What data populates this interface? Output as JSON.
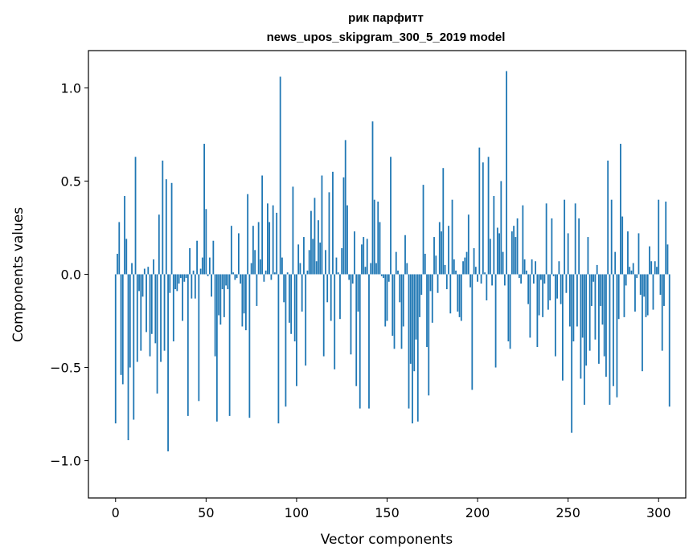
{
  "chart_data": {
    "type": "bar",
    "title_line1": "рик парфитт",
    "title_line2": "news_upos_skipgram_300_5_2019 model",
    "xlabel": "Vector components",
    "ylabel": "Components values",
    "xlim": [
      -15,
      315
    ],
    "ylim": [
      -1.2,
      1.2
    ],
    "xticks": [
      0,
      50,
      100,
      150,
      200,
      250,
      300
    ],
    "xtick_labels": [
      "0",
      "50",
      "100",
      "150",
      "200",
      "250",
      "300"
    ],
    "yticks": [
      -1.0,
      -0.5,
      0.0,
      0.5,
      1.0
    ],
    "ytick_labels": [
      "−1.0",
      "−0.5",
      "0.0",
      "0.5",
      "1.0"
    ],
    "bar_color": "#1f77b4",
    "values": [
      -0.8,
      0.11,
      0.28,
      -0.54,
      -0.59,
      0.42,
      0.19,
      -0.89,
      -0.5,
      0.06,
      -0.78,
      0.63,
      -0.47,
      -0.09,
      -0.41,
      -0.12,
      0.03,
      -0.31,
      0.04,
      -0.44,
      -0.32,
      0.08,
      -0.37,
      -0.64,
      0.32,
      -0.47,
      0.61,
      -0.41,
      0.51,
      -0.95,
      -0.1,
      0.49,
      -0.36,
      -0.08,
      -0.09,
      -0.05,
      -0.02,
      -0.25,
      -0.04,
      -0.02,
      -0.76,
      0.14,
      -0.13,
      0.02,
      -0.13,
      0.18,
      -0.68,
      0.03,
      0.09,
      0.7,
      0.35,
      -0.01,
      0.09,
      -0.12,
      0.18,
      -0.44,
      -0.79,
      -0.22,
      -0.27,
      -0.08,
      -0.23,
      -0.06,
      -0.08,
      -0.76,
      0.26,
      0.01,
      -0.03,
      -0.02,
      0.22,
      -0.05,
      -0.28,
      -0.21,
      -0.3,
      0.43,
      -0.77,
      0.06,
      0.26,
      0.13,
      -0.17,
      0.28,
      0.08,
      0.53,
      -0.04,
      0.02,
      0.38,
      0.28,
      -0.03,
      0.37,
      0.01,
      0.33,
      -0.8,
      1.06,
      0.09,
      -0.15,
      -0.71,
      0.01,
      -0.26,
      -0.32,
      0.47,
      -0.36,
      -0.6,
      0.16,
      0.06,
      -0.2,
      0.2,
      -0.49,
      0.02,
      0.13,
      0.34,
      0.19,
      0.41,
      0.07,
      0.29,
      0.17,
      0.53,
      -0.44,
      0.13,
      -0.15,
      0.44,
      -0.25,
      0.55,
      -0.51,
      0.09,
      0.01,
      -0.24,
      0.14,
      0.52,
      0.72,
      0.37,
      -0.03,
      -0.43,
      -0.05,
      0.23,
      -0.6,
      -0.2,
      -0.72,
      0.16,
      0.2,
      0.04,
      0.19,
      -0.72,
      0.06,
      0.82,
      0.4,
      0.06,
      0.39,
      0.28,
      -0.01,
      -0.02,
      -0.28,
      -0.25,
      -0.04,
      0.63,
      -0.33,
      -0.4,
      0.12,
      0.02,
      -0.15,
      -0.4,
      -0.28,
      0.21,
      0.06,
      -0.72,
      -0.48,
      -0.8,
      -0.52,
      -0.35,
      -0.79,
      -0.23,
      -0.11,
      0.48,
      0.11,
      -0.39,
      -0.65,
      -0.09,
      -0.26,
      0.2,
      0.1,
      -0.1,
      0.28,
      0.23,
      0.57,
      0.05,
      -0.08,
      0.26,
      -0.21,
      0.4,
      0.08,
      0.02,
      -0.2,
      -0.23,
      -0.25,
      0.07,
      0.09,
      0.12,
      0.32,
      -0.07,
      -0.62,
      0.14,
      0.04,
      -0.04,
      0.68,
      -0.05,
      0.6,
      0.01,
      -0.14,
      0.63,
      0.19,
      -0.06,
      0.42,
      -0.5,
      0.25,
      0.22,
      0.5,
      0.12,
      -0.06,
      1.09,
      -0.36,
      -0.4,
      0.23,
      0.26,
      0.2,
      0.3,
      -0.02,
      -0.05,
      0.37,
      0.08,
      0.02,
      -0.16,
      -0.34,
      0.08,
      -0.05,
      0.07,
      -0.39,
      -0.22,
      -0.03,
      -0.23,
      -0.05,
      0.38,
      -0.19,
      -0.14,
      0.3,
      -0.01,
      -0.44,
      -0.13,
      0.07,
      -0.16,
      -0.57,
      0.4,
      -0.1,
      0.22,
      -0.28,
      -0.85,
      -0.36,
      0.38,
      -0.28,
      0.3,
      -0.56,
      -0.34,
      -0.7,
      -0.49,
      0.2,
      -0.41,
      -0.17,
      -0.04,
      -0.35,
      0.05,
      -0.48,
      -0.17,
      -0.27,
      -0.44,
      -0.55,
      0.61,
      -0.7,
      0.4,
      -0.6,
      0.12,
      -0.66,
      -0.24,
      0.7,
      0.31,
      -0.23,
      -0.06,
      0.23,
      0.04,
      0.02,
      0.06,
      -0.2,
      -0.02,
      0.22,
      -0.11,
      -0.52,
      -0.12,
      -0.23,
      -0.22,
      0.15,
      0.07,
      -0.19,
      0.07,
      0.04,
      0.4,
      -0.11,
      -0.41,
      -0.17,
      0.39,
      0.16,
      -0.71
    ]
  }
}
